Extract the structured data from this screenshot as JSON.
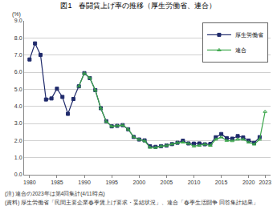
{
  "chart_data": {
    "type": "line",
    "title": "図1　春闘賃上げ率の推移（厚生労働省、連合）",
    "ylabel": "(%)",
    "notes": [
      "(注) 連合の2023年は第4回集計(4/11時点)",
      "(資料) 厚生労働省「民間主要企業春季賃上げ要求・妥結状況」、連合「春季生活闘争 回答集計結果」"
    ],
    "x": [
      1980,
      1981,
      1982,
      1983,
      1984,
      1985,
      1986,
      1987,
      1988,
      1989,
      1990,
      1991,
      1992,
      1993,
      1994,
      1995,
      1996,
      1997,
      1998,
      1999,
      2000,
      2001,
      2002,
      2003,
      2004,
      2005,
      2006,
      2007,
      2008,
      2009,
      2010,
      2011,
      2012,
      2013,
      2014,
      2015,
      2016,
      2017,
      2018,
      2019,
      2020,
      2021,
      2022,
      2023
    ],
    "series": [
      {
        "name": "厚生労働省",
        "color": "#1f2a6b",
        "marker": "square",
        "line_style": "solid",
        "values": [
          6.74,
          7.68,
          7.01,
          4.4,
          4.46,
          5.03,
          4.55,
          3.56,
          4.43,
          5.17,
          5.94,
          5.65,
          4.95,
          3.89,
          3.13,
          2.83,
          2.86,
          2.9,
          2.66,
          2.21,
          2.06,
          2.01,
          1.66,
          1.63,
          1.67,
          1.71,
          1.79,
          1.87,
          1.99,
          1.83,
          1.82,
          1.83,
          1.78,
          1.8,
          2.19,
          2.38,
          2.14,
          2.11,
          2.26,
          2.18,
          2.0,
          1.86,
          2.2,
          null
        ]
      },
      {
        "name": "連合",
        "color": "#3aa64a",
        "marker": "triangle-up-open",
        "line_style": "solid",
        "values": [
          null,
          null,
          null,
          null,
          null,
          null,
          null,
          null,
          null,
          5.17,
          5.94,
          5.66,
          4.95,
          3.89,
          3.11,
          2.83,
          2.86,
          2.9,
          2.66,
          2.21,
          2.06,
          1.98,
          1.59,
          1.59,
          1.67,
          1.71,
          1.79,
          1.87,
          1.9,
          1.83,
          1.67,
          1.71,
          1.78,
          1.71,
          2.07,
          2.2,
          2.0,
          1.98,
          2.07,
          2.07,
          1.9,
          1.78,
          2.07,
          3.69
        ]
      }
    ],
    "xlim": [
      1979,
      2024
    ],
    "xticks": [
      1980,
      1985,
      1990,
      1995,
      2000,
      2005,
      2010,
      2015,
      2020,
      2023
    ],
    "ylim": [
      0,
      9
    ],
    "yticks": [
      {
        "value": 0,
        "label": "0.0"
      },
      {
        "value": 1,
        "label": "1.0"
      },
      {
        "value": 2,
        "label": "2.0"
      },
      {
        "value": 3,
        "label": "3.0"
      },
      {
        "value": 4,
        "label": "4.0"
      },
      {
        "value": 5,
        "label": "5.0"
      },
      {
        "value": 6,
        "label": "6.0"
      },
      {
        "value": 7,
        "label": "7.0"
      },
      {
        "value": 8,
        "label": "8.0"
      },
      {
        "value": 9,
        "label": "9.0"
      }
    ],
    "grid": true,
    "legend": "upper right"
  }
}
